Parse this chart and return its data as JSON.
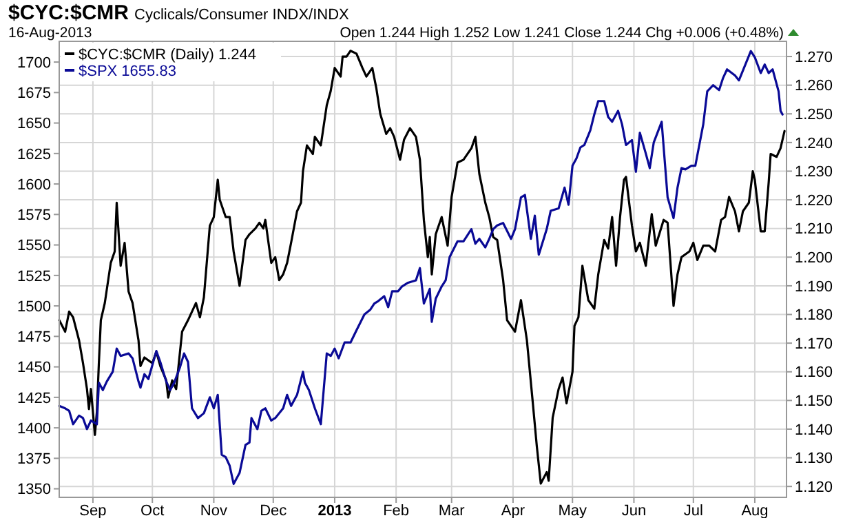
{
  "chart_data": {
    "type": "line",
    "title": "$CYC:$CMR",
    "subtitle": "Cyclicals/Consumer INDX/INDX",
    "annotations": [
      "16-Aug-2013",
      "Open 1.244 High 1.252 Low 1.241 Close 1.244 Chg +0.006 (+0.48%)"
    ],
    "xlim": [
      "2012-08-15",
      "2013-08-17"
    ],
    "xticks": [
      {
        "value": "2012-09-01",
        "label": "Sep"
      },
      {
        "value": "2012-10-01",
        "label": "Oct"
      },
      {
        "value": "2012-11-01",
        "label": "Nov"
      },
      {
        "value": "2012-12-01",
        "label": "Dec"
      },
      {
        "value": "2013-01-01",
        "label": "2013"
      },
      {
        "value": "2013-02-01",
        "label": "Feb"
      },
      {
        "value": "2013-03-01",
        "label": "Mar"
      },
      {
        "value": "2013-04-01",
        "label": "Apr"
      },
      {
        "value": "2013-05-01",
        "label": "May"
      },
      {
        "value": "2013-06-01",
        "label": "Jun"
      },
      {
        "value": "2013-07-01",
        "label": "Jul"
      },
      {
        "value": "2013-08-01",
        "label": "Aug"
      }
    ],
    "ylim": [
      1343,
      1717
    ],
    "yticks": [
      1350,
      1375,
      1400,
      1425,
      1450,
      1475,
      1500,
      1525,
      1550,
      1575,
      1600,
      1625,
      1650,
      1675,
      1700
    ],
    "y2lim": [
      1.1162,
      1.2753
    ],
    "y2ticks": [
      {
        "value": 1.12,
        "label": "1.120"
      },
      {
        "value": 1.13,
        "label": "1.130"
      },
      {
        "value": 1.14,
        "label": "1.140"
      },
      {
        "value": 1.15,
        "label": "1.150"
      },
      {
        "value": 1.16,
        "label": "1.160"
      },
      {
        "value": 1.17,
        "label": "1.170"
      },
      {
        "value": 1.18,
        "label": "1.180"
      },
      {
        "value": 1.19,
        "label": "1.190"
      },
      {
        "value": 1.2,
        "label": "1.200"
      },
      {
        "value": 1.21,
        "label": "1.210"
      },
      {
        "value": 1.22,
        "label": "1.220"
      },
      {
        "value": 1.23,
        "label": "1.230"
      },
      {
        "value": 1.24,
        "label": "1.240"
      },
      {
        "value": 1.25,
        "label": "1.250"
      },
      {
        "value": 1.26,
        "label": "1.260"
      },
      {
        "value": 1.27,
        "label": "1.270"
      }
    ],
    "grid": true,
    "legend": "top left",
    "series": [
      {
        "name": "$CYC:$CMR (Daily) 1.244",
        "color": "#000000",
        "axis": "y2",
        "x": [
          "2012-08-15",
          "2012-08-18",
          "2012-08-20",
          "2012-08-22",
          "2012-08-25",
          "2012-08-27",
          "2012-08-29",
          "2012-08-30",
          "2012-08-31",
          "2012-09-02",
          "2012-09-03",
          "2012-09-04",
          "2012-09-05",
          "2012-09-07",
          "2012-09-10",
          "2012-09-12",
          "2012-09-13",
          "2012-09-15",
          "2012-09-17",
          "2012-09-19",
          "2012-09-21",
          "2012-09-24",
          "2012-09-25",
          "2012-09-27",
          "2012-10-01",
          "2012-10-03",
          "2012-10-05",
          "2012-10-08",
          "2012-10-09",
          "2012-10-11",
          "2012-10-13",
          "2012-10-16",
          "2012-10-19",
          "2012-10-23",
          "2012-10-25",
          "2012-10-27",
          "2012-10-30",
          "2012-11-01",
          "2012-11-03",
          "2012-11-04",
          "2012-11-07",
          "2012-11-09",
          "2012-11-11",
          "2012-11-14",
          "2012-11-17",
          "2012-11-19",
          "2012-11-22",
          "2012-11-24",
          "2012-11-26",
          "2012-11-27",
          "2012-11-30",
          "2012-12-02",
          "2012-12-04",
          "2012-12-06",
          "2012-12-08",
          "2012-12-10",
          "2012-12-13",
          "2012-12-15",
          "2012-12-16",
          "2012-12-18",
          "2012-12-21",
          "2012-12-22",
          "2012-12-25",
          "2012-12-28",
          "2012-12-30",
          "2013-01-01",
          "2013-01-04",
          "2013-01-05",
          "2013-01-07",
          "2013-01-09",
          "2013-01-12",
          "2013-01-15",
          "2013-01-17",
          "2013-01-20",
          "2013-01-22",
          "2013-01-24",
          "2013-01-27",
          "2013-01-29",
          "2013-01-31",
          "2013-02-03",
          "2013-02-05",
          "2013-02-08",
          "2013-02-11",
          "2013-02-13",
          "2013-02-15",
          "2013-02-17",
          "2013-02-18",
          "2013-02-19",
          "2013-02-21",
          "2013-02-24",
          "2013-02-27",
          "2013-03-01",
          "2013-03-04",
          "2013-03-07",
          "2013-03-11",
          "2013-03-13",
          "2013-03-15",
          "2013-03-18",
          "2013-03-20",
          "2013-03-22",
          "2013-03-24",
          "2013-03-27",
          "2013-03-29",
          "2013-04-02",
          "2013-04-05",
          "2013-04-08",
          "2013-04-11",
          "2013-04-13",
          "2013-04-15",
          "2013-04-18",
          "2013-04-19",
          "2013-04-21",
          "2013-04-24",
          "2013-04-26",
          "2013-04-28",
          "2013-05-01",
          "2013-05-02",
          "2013-05-04",
          "2013-05-06",
          "2013-05-09",
          "2013-05-12",
          "2013-05-14",
          "2013-05-17",
          "2013-05-19",
          "2013-05-21",
          "2013-05-23",
          "2013-05-25",
          "2013-05-27",
          "2013-05-28",
          "2013-05-31",
          "2013-06-02",
          "2013-06-04",
          "2013-06-07",
          "2013-06-09",
          "2013-06-10",
          "2013-06-12",
          "2013-06-16",
          "2013-06-18",
          "2013-06-21",
          "2013-06-23",
          "2013-06-25",
          "2013-06-29",
          "2013-07-01",
          "2013-07-03",
          "2013-07-06",
          "2013-07-09",
          "2013-07-12",
          "2013-07-15",
          "2013-07-17",
          "2013-07-19",
          "2013-07-22",
          "2013-07-24",
          "2013-07-26",
          "2013-07-29",
          "2013-07-31",
          "2013-08-01",
          "2013-08-04",
          "2013-08-06",
          "2013-08-08",
          "2013-08-09",
          "2013-08-12",
          "2013-08-14",
          "2013-08-16"
        ],
        "values": [
          1.178,
          1.174,
          1.181,
          1.179,
          1.171,
          1.163,
          1.154,
          1.147,
          1.154,
          1.138,
          1.146,
          1.163,
          1.178,
          1.184,
          1.198,
          1.202,
          1.219,
          1.197,
          1.205,
          1.188,
          1.184,
          1.171,
          1.162,
          1.165,
          1.163,
          1.167,
          1.162,
          1.157,
          1.151,
          1.157,
          1.154,
          1.174,
          1.178,
          1.184,
          1.179,
          1.186,
          1.211,
          1.214,
          1.227,
          1.22,
          1.214,
          1.214,
          1.202,
          1.19,
          1.206,
          1.208,
          1.21,
          1.212,
          1.21,
          1.213,
          1.198,
          1.2,
          1.192,
          1.194,
          1.198,
          1.205,
          1.216,
          1.219,
          1.23,
          1.239,
          1.236,
          1.242,
          1.239,
          1.253,
          1.258,
          1.266,
          1.263,
          1.27,
          1.27,
          1.272,
          1.271,
          1.266,
          1.263,
          1.266,
          1.259,
          1.25,
          1.243,
          1.245,
          1.242,
          1.234,
          1.241,
          1.245,
          1.242,
          1.234,
          1.213,
          1.2,
          1.207,
          1.194,
          1.208,
          1.214,
          1.204,
          1.221,
          1.233,
          1.234,
          1.238,
          1.242,
          1.229,
          1.219,
          1.214,
          1.207,
          1.206,
          1.192,
          1.178,
          1.174,
          1.185,
          1.171,
          1.149,
          1.134,
          1.121,
          1.125,
          1.122,
          1.144,
          1.154,
          1.158,
          1.149,
          1.16,
          1.176,
          1.179,
          1.197,
          1.185,
          1.182,
          1.194,
          1.206,
          1.203,
          1.214,
          1.197,
          1.214,
          1.227,
          1.228,
          1.211,
          1.202,
          1.205,
          1.197,
          1.209,
          1.215,
          1.204,
          1.213,
          1.212,
          1.183,
          1.194,
          1.2,
          1.202,
          1.205,
          1.199,
          1.204,
          1.204,
          1.202,
          1.213,
          1.214,
          1.221,
          1.216,
          1.209,
          1.216,
          1.219,
          1.23,
          1.227,
          1.209,
          1.209,
          1.226,
          1.236,
          1.235,
          1.238,
          1.244
        ]
      },
      {
        "name": "$SPX 1655.83",
        "color": "#0a0a96",
        "x": [
          "2012-08-15",
          "2012-08-18",
          "2012-08-20",
          "2012-08-22",
          "2012-08-25",
          "2012-08-27",
          "2012-08-29",
          "2012-08-31",
          "2012-09-03",
          "2012-09-04",
          "2012-09-06",
          "2012-09-08",
          "2012-09-11",
          "2012-09-13",
          "2012-09-15",
          "2012-09-19",
          "2012-09-21",
          "2012-09-24",
          "2012-09-25",
          "2012-09-27",
          "2012-09-29",
          "2012-10-03",
          "2012-10-05",
          "2012-10-08",
          "2012-10-10",
          "2012-10-12",
          "2012-10-15",
          "2012-10-17",
          "2012-10-19",
          "2012-10-21",
          "2012-10-24",
          "2012-10-27",
          "2012-10-30",
          "2012-11-01",
          "2012-11-03",
          "2012-11-05",
          "2012-11-07",
          "2012-11-09",
          "2012-11-11",
          "2012-11-14",
          "2012-11-17",
          "2012-11-19",
          "2012-11-20",
          "2012-11-23",
          "2012-11-25",
          "2012-11-27",
          "2012-11-30",
          "2012-12-02",
          "2012-12-06",
          "2012-12-08",
          "2012-12-10",
          "2012-12-13",
          "2012-12-16",
          "2012-12-17",
          "2012-12-19",
          "2012-12-22",
          "2012-12-25",
          "2012-12-28",
          "2012-12-30",
          "2013-01-01",
          "2013-01-03",
          "2013-01-06",
          "2013-01-09",
          "2013-01-12",
          "2013-01-16",
          "2013-01-19",
          "2013-01-21",
          "2013-01-23",
          "2013-01-26",
          "2013-01-28",
          "2013-01-30",
          "2013-02-02",
          "2013-02-04",
          "2013-02-07",
          "2013-02-11",
          "2013-02-13",
          "2013-02-15",
          "2013-02-18",
          "2013-02-19",
          "2013-02-21",
          "2013-02-24",
          "2013-02-26",
          "2013-02-28",
          "2013-03-04",
          "2013-03-07",
          "2013-03-11",
          "2013-03-13",
          "2013-03-15",
          "2013-03-18",
          "2013-03-20",
          "2013-03-22",
          "2013-03-24",
          "2013-03-27",
          "2013-03-31",
          "2013-04-02",
          "2013-04-05",
          "2013-04-07",
          "2013-04-10",
          "2013-04-12",
          "2013-04-14",
          "2013-04-18",
          "2013-04-20",
          "2013-04-24",
          "2013-04-27",
          "2013-04-29",
          "2013-05-01",
          "2013-05-03",
          "2013-05-05",
          "2013-05-07",
          "2013-05-10",
          "2013-05-12",
          "2013-05-14",
          "2013-05-17",
          "2013-05-19",
          "2013-05-21",
          "2013-05-24",
          "2013-05-26",
          "2013-05-28",
          "2013-05-31",
          "2013-06-02",
          "2013-06-04",
          "2013-06-07",
          "2013-06-09",
          "2013-06-11",
          "2013-06-15",
          "2013-06-18",
          "2013-06-21",
          "2013-06-23",
          "2013-06-25",
          "2013-06-27",
          "2013-06-30",
          "2013-07-02",
          "2013-07-06",
          "2013-07-08",
          "2013-07-11",
          "2013-07-14",
          "2013-07-16",
          "2013-07-18",
          "2013-07-22",
          "2013-07-24",
          "2013-07-30",
          "2013-08-01",
          "2013-08-04",
          "2013-08-06",
          "2013-08-08",
          "2013-08-10",
          "2013-08-13",
          "2013-08-14",
          "2013-08-15"
        ],
        "values": [
          1418,
          1416,
          1414,
          1403,
          1410,
          1408,
          1399,
          1406,
          1403,
          1437,
          1431,
          1438,
          1446,
          1465,
          1459,
          1461,
          1457,
          1438,
          1433,
          1444,
          1440,
          1463,
          1454,
          1438,
          1431,
          1437,
          1450,
          1461,
          1454,
          1416,
          1408,
          1412,
          1425,
          1416,
          1427,
          1378,
          1376,
          1369,
          1354,
          1363,
          1386,
          1388,
          1408,
          1399,
          1414,
          1416,
          1406,
          1408,
          1416,
          1427,
          1418,
          1427,
          1446,
          1437,
          1431,
          1416,
          1403,
          1461,
          1459,
          1465,
          1457,
          1470,
          1470,
          1480,
          1493,
          1497,
          1502,
          1504,
          1508,
          1499,
          1512,
          1512,
          1516,
          1519,
          1521,
          1531,
          1502,
          1514,
          1487,
          1506,
          1516,
          1521,
          1540,
          1553,
          1553,
          1563,
          1551,
          1555,
          1548,
          1555,
          1563,
          1566,
          1568,
          1555,
          1563,
          1589,
          1591,
          1555,
          1574,
          1542,
          1563,
          1578,
          1580,
          1597,
          1583,
          1615,
          1621,
          1630,
          1632,
          1644,
          1657,
          1668,
          1668,
          1655,
          1651,
          1660,
          1649,
          1632,
          1636,
          1610,
          1642,
          1625,
          1613,
          1634,
          1651,
          1589,
          1572,
          1597,
          1613,
          1612,
          1615,
          1615,
          1649,
          1676,
          1681,
          1677,
          1687,
          1694,
          1689,
          1685,
          1709,
          1704,
          1691,
          1698,
          1691,
          1694,
          1676,
          1660,
          1657
        ]
      }
    ]
  }
}
